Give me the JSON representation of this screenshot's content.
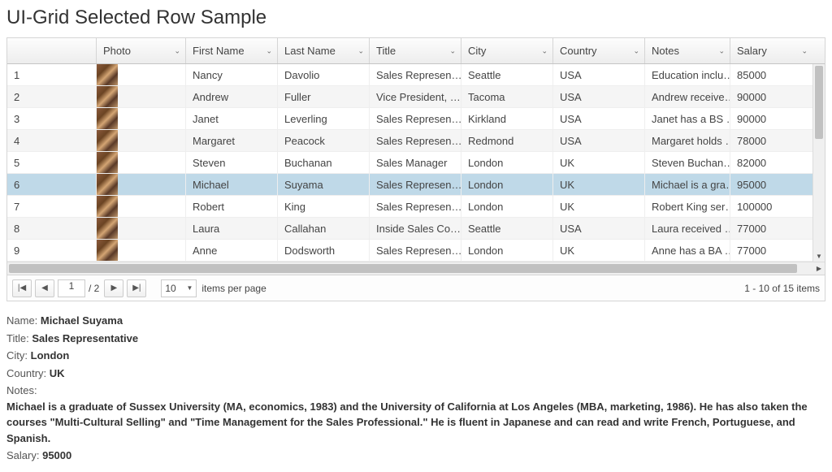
{
  "title": "UI-Grid Selected Row Sample",
  "columns": [
    {
      "key": "idx",
      "label": "",
      "width": "w-idx",
      "menu": false
    },
    {
      "key": "photo",
      "label": "Photo",
      "width": "w-photo",
      "menu": true
    },
    {
      "key": "fn",
      "label": "First Name",
      "width": "w-fn",
      "menu": true
    },
    {
      "key": "ln",
      "label": "Last Name",
      "width": "w-ln",
      "menu": true
    },
    {
      "key": "title",
      "label": "Title",
      "width": "w-title",
      "menu": true
    },
    {
      "key": "city",
      "label": "City",
      "width": "w-city",
      "menu": true
    },
    {
      "key": "ctry",
      "label": "Country",
      "width": "w-ctry",
      "menu": true
    },
    {
      "key": "notes",
      "label": "Notes",
      "width": "w-notes",
      "menu": true
    },
    {
      "key": "sal",
      "label": "Salary",
      "width": "w-sal",
      "menu": true
    }
  ],
  "rows": [
    {
      "idx": "1",
      "fn": "Nancy",
      "ln": "Davolio",
      "title": "Sales Represen…",
      "city": "Seattle",
      "ctry": "USA",
      "notes": "Education inclu…",
      "sal": "85000"
    },
    {
      "idx": "2",
      "fn": "Andrew",
      "ln": "Fuller",
      "title": "Vice President, …",
      "city": "Tacoma",
      "ctry": "USA",
      "notes": "Andrew receive…",
      "sal": "90000"
    },
    {
      "idx": "3",
      "fn": "Janet",
      "ln": "Leverling",
      "title": "Sales Represen…",
      "city": "Kirkland",
      "ctry": "USA",
      "notes": "Janet has a BS …",
      "sal": "90000"
    },
    {
      "idx": "4",
      "fn": "Margaret",
      "ln": "Peacock",
      "title": "Sales Represen…",
      "city": "Redmond",
      "ctry": "USA",
      "notes": "Margaret holds …",
      "sal": "78000"
    },
    {
      "idx": "5",
      "fn": "Steven",
      "ln": "Buchanan",
      "title": "Sales Manager",
      "city": "London",
      "ctry": "UK",
      "notes": "Steven Buchan…",
      "sal": "82000"
    },
    {
      "idx": "6",
      "fn": "Michael",
      "ln": "Suyama",
      "title": "Sales Represen…",
      "city": "London",
      "ctry": "UK",
      "notes": "Michael is a gra…",
      "sal": "95000"
    },
    {
      "idx": "7",
      "fn": "Robert",
      "ln": "King",
      "title": "Sales Represen…",
      "city": "London",
      "ctry": "UK",
      "notes": "Robert King ser…",
      "sal": "100000"
    },
    {
      "idx": "8",
      "fn": "Laura",
      "ln": "Callahan",
      "title": "Inside Sales Co…",
      "city": "Seattle",
      "ctry": "USA",
      "notes": "Laura received …",
      "sal": "77000"
    },
    {
      "idx": "9",
      "fn": "Anne",
      "ln": "Dodsworth",
      "title": "Sales Represen…",
      "city": "London",
      "ctry": "UK",
      "notes": "Anne has a BA …",
      "sal": "77000"
    }
  ],
  "selectedIndex": 5,
  "pager": {
    "page": "1",
    "totalPages": "2",
    "pageSize": "10",
    "itemsPerPageLabel": "items per page",
    "summary": "1 - 10 of 15 items"
  },
  "detail": {
    "labels": {
      "name": "Name:",
      "title": "Title:",
      "city": "City:",
      "country": "Country:",
      "notes": "Notes:",
      "salary": "Salary:"
    },
    "name": "Michael Suyama",
    "title": "Sales Representative",
    "city": "London",
    "country": "UK",
    "notes": "Michael is a graduate of Sussex University (MA, economics, 1983) and the University of California at Los Angeles (MBA, marketing, 1986). He has also taken the courses \"Multi-Cultural Selling\" and \"Time Management for the Sales Professional.\" He is fluent in Japanese and can read and write French, Portuguese, and Spanish.",
    "salary": "95000"
  },
  "colors": {
    "selected_row_bg": "#bfd9e8",
    "alt_row_bg": "#f5f5f5",
    "border": "#d5d5d5"
  }
}
